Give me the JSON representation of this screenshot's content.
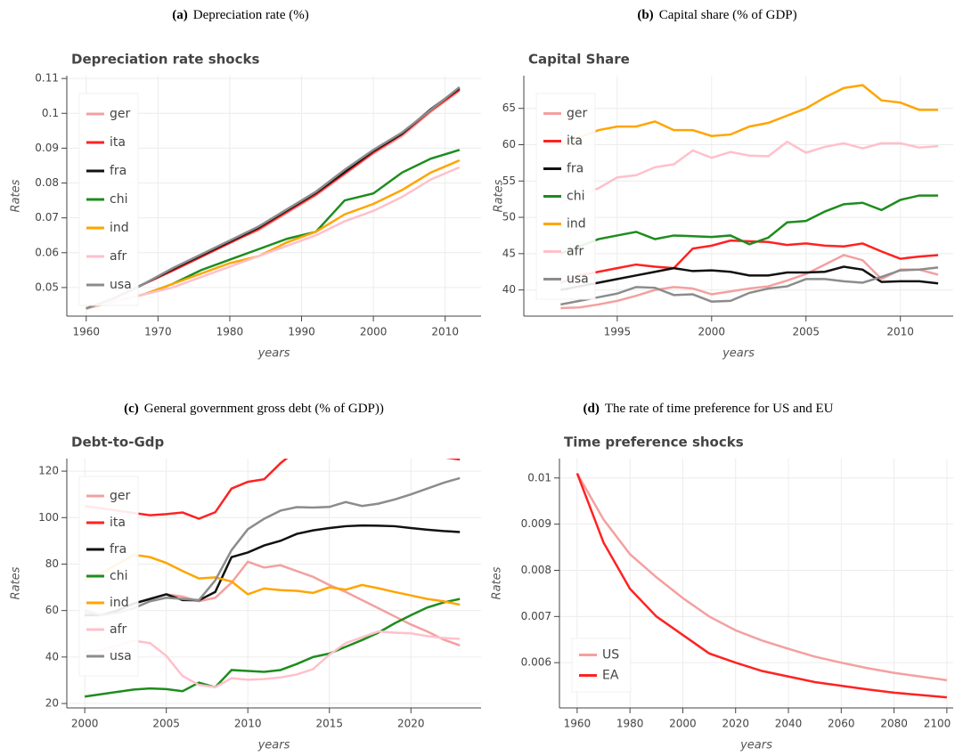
{
  "chart_data": [
    {
      "type": "line",
      "caption_label": "(a)",
      "caption": "Depreciation rate (%)",
      "title": "Depreciation rate shocks",
      "xlabel": "years",
      "ylabel": "Rates",
      "x": [
        1960,
        1964,
        1968,
        1972,
        1976,
        1980,
        1984,
        1988,
        1992,
        1996,
        2000,
        2004,
        2008,
        2012
      ],
      "series": [
        {
          "name": "ger",
          "color": "#f4a0a0",
          "values": [
            0.044,
            0.047,
            0.051,
            0.055,
            0.059,
            0.063,
            0.0665,
            0.0715,
            0.0765,
            0.0825,
            0.0885,
            0.0935,
            0.1005,
            0.1065
          ]
        },
        {
          "name": "ita",
          "color": "#ff2222",
          "values": [
            0.044,
            0.047,
            0.051,
            0.0548,
            0.0588,
            0.0628,
            0.0668,
            0.0718,
            0.0768,
            0.0828,
            0.0888,
            0.094,
            0.1008,
            0.1068
          ]
        },
        {
          "name": "fra",
          "color": "#111111",
          "values": [
            0.044,
            0.047,
            0.051,
            0.0552,
            0.0592,
            0.0632,
            0.0672,
            0.0722,
            0.0772,
            0.0832,
            0.0892,
            0.0942,
            0.1012,
            0.1072
          ]
        },
        {
          "name": "chi",
          "color": "#1e8c1e",
          "values": [
            0.044,
            0.046,
            0.048,
            0.051,
            0.055,
            0.058,
            0.061,
            0.064,
            0.066,
            0.075,
            0.077,
            0.083,
            0.087,
            0.0895
          ]
        },
        {
          "name": "ind",
          "color": "#ffa500",
          "values": [
            0.044,
            0.046,
            0.048,
            0.051,
            0.054,
            0.057,
            0.059,
            0.063,
            0.066,
            0.071,
            0.074,
            0.078,
            0.083,
            0.0865
          ]
        },
        {
          "name": "afr",
          "color": "#ffc0cb",
          "values": [
            0.044,
            0.046,
            0.048,
            0.05,
            0.053,
            0.056,
            0.059,
            0.062,
            0.065,
            0.069,
            0.072,
            0.076,
            0.081,
            0.0845
          ]
        },
        {
          "name": "usa",
          "color": "#8c8c8c",
          "values": [
            0.044,
            0.047,
            0.051,
            0.0555,
            0.0595,
            0.0635,
            0.0675,
            0.0725,
            0.0775,
            0.0838,
            0.0895,
            0.0945,
            0.101,
            0.1075
          ]
        }
      ],
      "xlim": [
        1957.3,
        2015
      ],
      "ylim": [
        0.0418,
        0.1108
      ],
      "xticks": [
        1960,
        1970,
        1980,
        1990,
        2000,
        2010
      ],
      "yticks": [
        0.05,
        0.06,
        0.07,
        0.08,
        0.09,
        0.1,
        0.11
      ],
      "grid": true,
      "legend": "top_left"
    },
    {
      "type": "line",
      "caption_label": "(b)",
      "caption": "Capital share (% of GDP)",
      "title": "Capital Share",
      "xlabel": "years",
      "ylabel": "Rates",
      "x": [
        1992,
        1993,
        1994,
        1995,
        1996,
        1997,
        1998,
        1999,
        2000,
        2001,
        2002,
        2003,
        2004,
        2005,
        2006,
        2007,
        2008,
        2009,
        2010,
        2011,
        2012
      ],
      "series": [
        {
          "name": "ger",
          "color": "#f4a0a0",
          "values": [
            37.5,
            37.6,
            38,
            38.5,
            39.2,
            40,
            40.4,
            40.2,
            39.4,
            39.8,
            40.2,
            40.5,
            41.3,
            42.2,
            43.5,
            44.8,
            44.1,
            41.5,
            42.8,
            42.8,
            42.1
          ]
        },
        {
          "name": "ita",
          "color": "#ff2222",
          "values": [
            41,
            42,
            42.5,
            43,
            43.5,
            43.2,
            43,
            45.7,
            46.1,
            46.8,
            46.7,
            46.6,
            46.2,
            46.4,
            46.1,
            46,
            46.4,
            45.3,
            44.3,
            44.6,
            44.8
          ]
        },
        {
          "name": "fra",
          "color": "#111111",
          "values": [
            40,
            40.5,
            41,
            41.5,
            42,
            42.5,
            43,
            42.6,
            42.7,
            42.5,
            42,
            42,
            42.4,
            42.4,
            42.5,
            43.2,
            42.8,
            41.1,
            41.2,
            41.2,
            40.9
          ]
        },
        {
          "name": "chi",
          "color": "#1e8c1e",
          "values": [
            45,
            46,
            47,
            47.5,
            48,
            47,
            47.5,
            47.4,
            47.3,
            47.5,
            46.3,
            47.2,
            49.3,
            49.5,
            50.8,
            51.8,
            52,
            51,
            52.4,
            53,
            53
          ]
        },
        {
          "name": "ind",
          "color": "#ffa500",
          "values": [
            60,
            61,
            62,
            62.5,
            62.5,
            63.2,
            62,
            62,
            61.2,
            61.4,
            62.5,
            63,
            64,
            65,
            66.5,
            67.8,
            68.2,
            66.1,
            65.8,
            64.8,
            64.8
          ]
        },
        {
          "name": "afr",
          "color": "#ffc0cb",
          "values": [
            52,
            53,
            54,
            55.5,
            55.8,
            56.9,
            57.3,
            59.2,
            58.2,
            59,
            58.5,
            58.4,
            60.4,
            58.9,
            59.7,
            60.2,
            59.5,
            60.2,
            60.2,
            59.6,
            59.8
          ]
        },
        {
          "name": "usa",
          "color": "#8c8c8c",
          "values": [
            38,
            38.5,
            39,
            39.5,
            40.4,
            40.3,
            39.3,
            39.4,
            38.4,
            38.5,
            39.6,
            40.2,
            40.5,
            41.5,
            41.5,
            41.2,
            41,
            41.8,
            42.7,
            42.8,
            43.1
          ]
        }
      ],
      "xlim": [
        1990.05,
        2012.8
      ],
      "ylim": [
        36.4,
        69.5
      ],
      "xticks": [
        1995,
        2000,
        2005,
        2010
      ],
      "yticks": [
        40,
        45,
        50,
        55,
        60,
        65
      ],
      "grid": true,
      "legend": "top_left"
    },
    {
      "type": "line",
      "caption_label": "(c)",
      "caption": "General government gross debt (% of GDP))",
      "title": "Debt-to-Gdp",
      "xlabel": "years",
      "ylabel": "Rates",
      "x": [
        2000,
        2001,
        2002,
        2003,
        2004,
        2005,
        2006,
        2007,
        2008,
        2009,
        2010,
        2011,
        2012,
        2013,
        2014,
        2015,
        2016,
        2017,
        2018,
        2019,
        2020,
        2021,
        2022,
        2023
      ],
      "series": [
        {
          "name": "ger",
          "color": "#f4a0a0",
          "values": [
            59,
            58,
            60,
            63,
            65,
            67,
            66,
            64,
            65.5,
            72,
            81,
            78.5,
            79.5,
            77,
            74.5,
            71,
            68,
            64.5,
            61,
            57.5,
            54,
            51,
            47.5,
            45
          ]
        },
        {
          "name": "ita",
          "color": "#ff2222",
          "values": [
            105,
            104,
            103,
            102,
            101,
            101.5,
            102.2,
            99.5,
            102.3,
            112.5,
            115.4,
            116.5,
            123.4,
            129,
            131.8,
            131.6,
            132,
            131.8,
            130,
            128.6,
            127.8,
            127,
            126,
            125
          ]
        },
        {
          "name": "fra",
          "color": "#111111",
          "values": [
            58,
            58,
            60,
            63,
            65,
            67,
            64.5,
            64.4,
            68,
            83,
            85,
            88,
            90,
            93,
            94.5,
            95.5,
            96.3,
            96.6,
            96.5,
            96.3,
            95.5,
            94.8,
            94.2,
            93.8
          ]
        },
        {
          "name": "chi",
          "color": "#1e8c1e",
          "values": [
            23,
            24,
            25,
            26,
            26.5,
            26.2,
            25.3,
            29,
            27,
            34.4,
            34,
            33.6,
            34.4,
            37,
            40,
            41.5,
            44.4,
            47.3,
            50.5,
            54.5,
            58,
            61.3,
            63.5,
            65
          ]
        },
        {
          "name": "ind",
          "color": "#ffa500",
          "values": [
            73,
            76,
            80,
            84,
            83,
            80.5,
            77,
            73.8,
            74.3,
            72.5,
            67,
            69.5,
            68.8,
            68.5,
            67.6,
            70,
            69,
            71,
            69.6,
            68,
            66.5,
            65,
            64,
            62.5
          ]
        },
        {
          "name": "afr",
          "color": "#ffc0cb",
          "values": [
            42,
            43,
            45,
            47,
            46,
            40.5,
            31.8,
            28,
            27,
            30.9,
            30.2,
            30.5,
            31.2,
            32.5,
            34.8,
            41,
            46,
            48.5,
            51,
            50.5,
            50.2,
            49,
            48.2,
            47.8
          ]
        },
        {
          "name": "usa",
          "color": "#8c8c8c",
          "values": [
            60,
            58,
            59,
            61,
            64,
            65.5,
            65,
            64.5,
            73,
            86,
            95,
            99.5,
            103,
            104.5,
            104.3,
            104.6,
            106.7,
            105,
            106,
            107.8,
            110,
            112.5,
            115,
            117
          ]
        }
      ],
      "xlim": [
        1998.9,
        2024.3
      ],
      "ylim": [
        18.1,
        125.4
      ],
      "xticks": [
        2000,
        2005,
        2010,
        2015,
        2020
      ],
      "yticks": [
        20,
        40,
        60,
        80,
        100,
        120
      ],
      "grid": true,
      "legend": "top_left"
    },
    {
      "type": "line",
      "caption_label": "(d)",
      "caption": "The rate of time preference for US and EU",
      "title": "Time preference shocks",
      "xlabel": "years",
      "ylabel": "Rates",
      "x": [
        1960,
        1970,
        1980,
        1990,
        2000,
        2010,
        2020,
        2030,
        2040,
        2050,
        2060,
        2070,
        2080,
        2090,
        2100
      ],
      "series": [
        {
          "name": "US",
          "color": "#f4a0a0",
          "values": [
            0.0101,
            0.0091,
            0.00835,
            0.00785,
            0.0074,
            0.007,
            0.0067,
            0.00648,
            0.0063,
            0.00613,
            0.006,
            0.00588,
            0.00578,
            0.0057,
            0.00562
          ]
        },
        {
          "name": "EA",
          "color": "#ff2222",
          "values": [
            0.0101,
            0.0086,
            0.0076,
            0.007,
            0.0066,
            0.0062,
            0.006,
            0.00582,
            0.0057,
            0.00558,
            0.0055,
            0.00542,
            0.00535,
            0.0053,
            0.00525
          ]
        }
      ],
      "xlim": [
        1953.3,
        2102.4
      ],
      "ylim": [
        0.00502,
        0.01042
      ],
      "xticks": [
        1960,
        1980,
        2000,
        2020,
        2040,
        2060,
        2080,
        2100
      ],
      "yticks": [
        0.006,
        0.007,
        0.008,
        0.009,
        0.01
      ],
      "grid": true,
      "legend": "bottom_left"
    }
  ]
}
